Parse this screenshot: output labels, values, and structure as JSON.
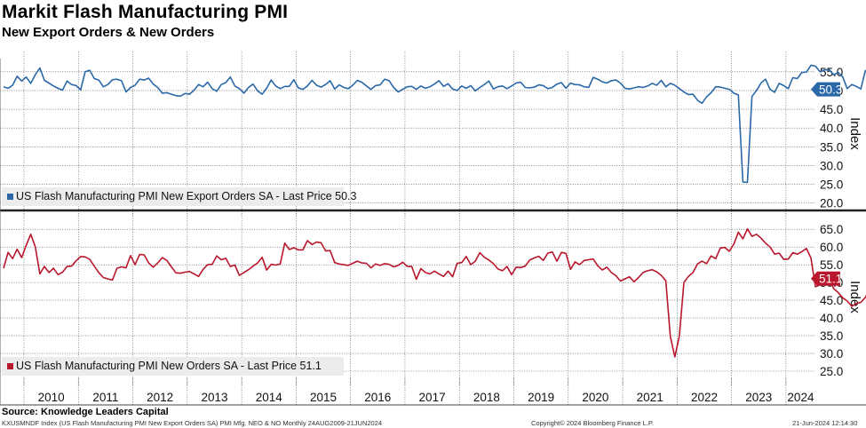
{
  "header": {
    "title": "Markit Flash Manufacturing PMI",
    "subtitle": "New Export Orders & New Orders"
  },
  "footer": {
    "source": "Source: Knowledge Leaders Capital",
    "ticker_line": "KXUSMNDF Index (US Flash Manufacturing PMI New Export Orders SA) PMI Mfg. NEO & NO  Monthly 24AUG2009-21JUN2024",
    "copyright": "Copyright© 2024 Bloomberg Finance L.P.",
    "timestamp": "21-Jun-2024 12:14:30"
  },
  "colors": {
    "export_series": "#2a68a8",
    "orders_series": "#b8172d",
    "grid": "#333333",
    "legend_bg": "#ececec"
  },
  "chart_data": [
    {
      "type": "line",
      "title": "US Flash Manufacturing PMI New Export Orders SA",
      "ylabel": "Index",
      "ylim": [
        18.5,
        58.5
      ],
      "yticks": [
        20.0,
        25.0,
        30.0,
        35.0,
        40.0,
        45.0,
        50.0,
        55.0
      ],
      "ytick_labels": [
        "20.0",
        "25.0",
        "30.0",
        "35.0",
        "40.0",
        "45.0",
        "50.0",
        "55.0"
      ],
      "legend": "US Flash Manufacturing PMI New Export Orders SA - Last Price 50.3",
      "last_price_label": "50.3",
      "last_price": 50.3,
      "x_start": 2009.625,
      "x_step": 0.0833333,
      "series": [
        {
          "name": "US Flash Manufacturing PMI New Export Orders SA",
          "values": [
            51.0,
            50.6,
            51.4,
            53.8,
            52.5,
            53.6,
            51.9,
            54.2,
            56.0,
            52.7,
            52.0,
            51.2,
            50.6,
            50.1,
            52.5,
            51.6,
            51.3,
            50.2,
            55.0,
            55.4,
            53.2,
            52.8,
            51.0,
            51.6,
            52.9,
            53.0,
            52.6,
            49.6,
            50.8,
            51.4,
            53.0,
            52.8,
            53.3,
            51.7,
            50.8,
            49.3,
            49.4,
            49.0,
            48.6,
            48.5,
            49.2,
            49.0,
            50.1,
            51.6,
            51.0,
            52.2,
            50.5,
            49.8,
            51.6,
            52.1,
            53.6,
            51.2,
            50.5,
            49.3,
            50.8,
            51.7,
            49.9,
            49.0,
            50.6,
            52.8,
            51.2,
            50.5,
            51.1,
            51.1,
            52.9,
            50.7,
            50.3,
            51.2,
            52.7,
            51.4,
            50.9,
            51.6,
            52.6,
            50.4,
            51.5,
            50.8,
            50.5,
            51.4,
            52.7,
            52.2,
            51.2,
            50.3,
            51.3,
            51.5,
            53.0,
            52.6,
            50.8,
            49.6,
            50.3,
            51.0,
            51.1,
            50.3,
            51.2,
            50.6,
            51.0,
            51.7,
            52.6,
            51.1,
            51.8,
            50.4,
            50.0,
            51.2,
            50.6,
            51.3,
            49.9,
            50.8,
            51.6,
            52.5,
            50.4,
            51.0,
            51.2,
            50.5,
            51.2,
            52.0,
            52.2,
            50.8,
            50.7,
            50.9,
            51.5,
            51.3,
            50.5,
            50.8,
            51.7,
            52.1,
            50.6,
            52.0,
            51.6,
            51.5,
            51.0,
            50.8,
            53.5,
            53.0,
            52.3,
            52.0,
            52.6,
            52.8,
            52.0,
            50.6,
            50.4,
            50.7,
            51.0,
            50.8,
            51.2,
            51.9,
            51.4,
            52.7,
            51.0,
            51.9,
            51.4,
            50.5,
            49.6,
            48.9,
            49.0,
            47.4,
            46.6,
            48.3,
            49.4,
            51.0,
            50.9,
            50.6,
            50.3,
            49.3,
            48.8,
            25.6,
            25.5,
            48.4,
            50.0,
            52.0,
            53.0,
            50.3,
            49.5,
            51.9,
            51.3,
            50.5,
            53.4,
            53.2,
            54.8,
            54.9,
            56.7,
            56.5,
            55.0,
            55.5,
            55.6,
            54.2,
            54.8,
            53.7,
            50.5,
            51.6,
            51.1,
            50.4,
            55.3,
            55.4,
            56.2,
            57.1,
            53.2,
            51.5,
            49.0,
            47.8,
            47.2,
            46.6,
            44.4,
            44.6,
            46.3,
            48.1,
            48.1,
            47.7,
            47.7,
            47.4,
            44.5,
            44.7,
            47.9,
            45.9,
            49.0,
            49.1,
            50.0,
            51.2,
            51.1,
            49.2,
            51.5,
            51.5,
            51.3,
            51.0,
            51.3,
            50.3
          ]
        }
      ]
    },
    {
      "type": "line",
      "title": "US Flash Manufacturing PMI New Orders SA",
      "ylabel": "Index",
      "ylim": [
        23.0,
        68.8
      ],
      "yticks": [
        25.0,
        30.0,
        35.0,
        40.0,
        45.0,
        50.0,
        55.0,
        60.0,
        65.0
      ],
      "ytick_labels": [
        "25.0",
        "30.0",
        "35.0",
        "40.0",
        "45.0",
        "50.0",
        "55.0",
        "60.0",
        "65.0"
      ],
      "legend": "US Flash Manufacturing PMI New Orders SA - Last Price 51.1",
      "last_price_label": "51.1",
      "last_price": 51.1,
      "x_start": 2009.625,
      "x_step": 0.0833333,
      "series": [
        {
          "name": "US Flash Manufacturing PMI New Orders SA",
          "values": [
            54.0,
            58.5,
            56.7,
            59.4,
            57.0,
            60.5,
            63.6,
            60.1,
            52.4,
            54.5,
            52.8,
            54.0,
            52.2,
            52.9,
            54.5,
            54.6,
            56.1,
            57.3,
            57.2,
            56.5,
            54.6,
            52.8,
            51.4,
            51.0,
            50.7,
            54.0,
            54.4,
            54.1,
            57.6,
            55.0,
            57.9,
            57.8,
            55.5,
            54.3,
            55.5,
            57.0,
            56.2,
            54.4,
            52.7,
            52.6,
            52.9,
            53.1,
            52.4,
            51.7,
            53.7,
            55.0,
            55.1,
            57.5,
            56.4,
            56.8,
            54.5,
            54.9,
            52.0,
            52.8,
            53.6,
            54.6,
            55.5,
            57.1,
            53.5,
            55.1,
            54.9,
            55.2,
            61.1,
            59.3,
            59.8,
            59.2,
            59.2,
            61.8,
            60.7,
            61.4,
            61.2,
            58.9,
            59.0,
            55.6,
            55.2,
            55.0,
            54.8,
            55.4,
            56.0,
            55.5,
            55.4,
            54.1,
            55.2,
            54.8,
            55.3,
            55.1,
            54.4,
            54.8,
            55.7,
            54.5,
            54.5,
            50.9,
            53.9,
            52.8,
            52.4,
            53.2,
            52.4,
            51.7,
            53.2,
            51.6,
            55.4,
            55.6,
            57.3,
            55.0,
            56.0,
            58.4,
            57.1,
            56.3,
            55.3,
            53.8,
            53.3,
            54.5,
            52.2,
            54.3,
            54.2,
            54.6,
            56.3,
            56.9,
            57.4,
            56.2,
            58.3,
            58.6,
            56.0,
            58.5,
            58.2,
            53.7,
            55.8,
            55.0,
            56.2,
            56.4,
            56.6,
            54.7,
            53.5,
            54.3,
            52.8,
            51.9,
            50.4,
            51.0,
            51.6,
            50.2,
            51.4,
            52.8,
            53.3,
            53.6,
            53.0,
            52.0,
            50.5,
            34.8,
            29.0,
            35.0,
            50.0,
            51.7,
            52.8,
            55.2,
            56.0,
            55.3,
            57.5,
            56.7,
            59.7,
            59.9,
            58.8,
            60.8,
            64.2,
            62.3,
            65.1,
            63.0,
            63.6,
            62.5,
            61.1,
            60.0,
            58.0,
            58.3,
            56.5,
            56.6,
            58.4,
            58.0,
            58.7,
            59.6,
            56.9,
            48.8,
            49.3,
            49.7,
            51.5,
            48.3,
            47.2,
            45.7,
            44.8,
            43.3,
            44.1,
            44.4,
            45.8,
            48.3,
            50.5,
            49.0,
            42.8,
            48.5,
            45.6,
            50.4,
            49.3,
            51.6,
            50.9,
            48.3,
            47.7,
            53.7,
            54.0,
            53.6,
            49.7,
            50.3,
            49.7,
            51.1
          ]
        }
      ]
    },
    {
      "type": "axis",
      "years": [
        "2010",
        "2011",
        "2012",
        "2013",
        "2014",
        "2015",
        "2016",
        "2017",
        "2018",
        "2019",
        "2020",
        "2021",
        "2022",
        "2023",
        "2024"
      ]
    }
  ]
}
